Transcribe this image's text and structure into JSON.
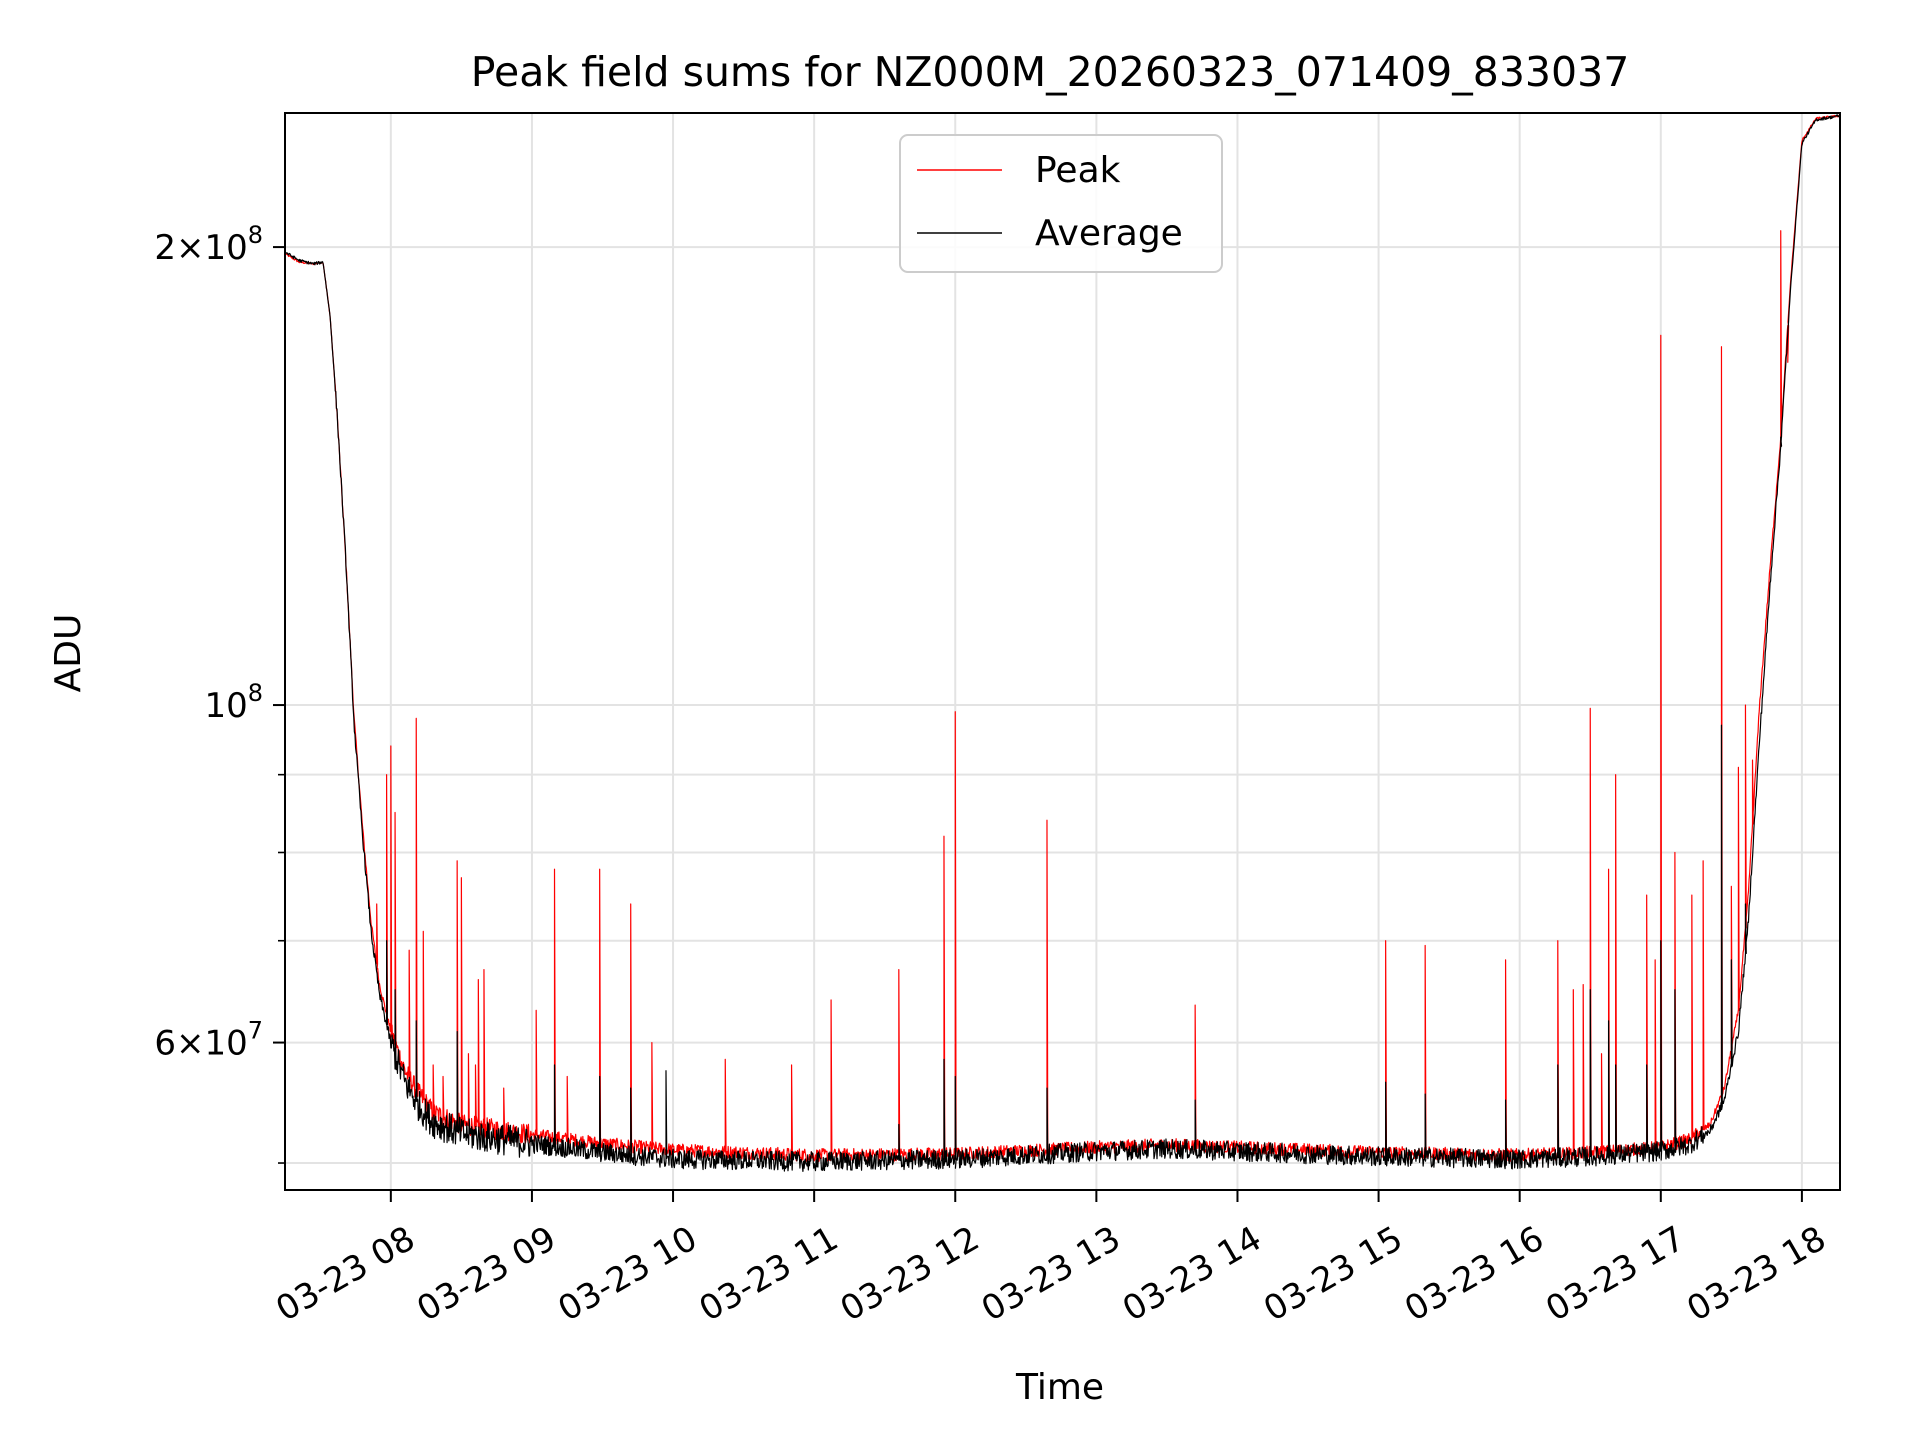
{
  "chart_data": {
    "type": "line",
    "title": "Peak field sums for NZ000M_20260323_071409_833037",
    "xlabel": "Time",
    "ylabel": "ADU",
    "y_scale": "log",
    "xlim": [
      7.25,
      18.27
    ],
    "ylim": [
      48000000,
      245000000
    ],
    "grid": true,
    "legend_position": "upper center",
    "x_tick_labels": [
      {
        "x": 8,
        "label": "03-23 08"
      },
      {
        "x": 9,
        "label": "03-23 09"
      },
      {
        "x": 10,
        "label": "03-23 10"
      },
      {
        "x": 11,
        "label": "03-23 11"
      },
      {
        "x": 12,
        "label": "03-23 12"
      },
      {
        "x": 13,
        "label": "03-23 13"
      },
      {
        "x": 14,
        "label": "03-23 14"
      },
      {
        "x": 15,
        "label": "03-23 15"
      },
      {
        "x": 16,
        "label": "03-23 16"
      },
      {
        "x": 17,
        "label": "03-23 17"
      },
      {
        "x": 18,
        "label": "03-23 18"
      }
    ],
    "y_major_ticks": [
      {
        "value": 60000000,
        "mantissa": "6",
        "exponent": "7"
      },
      {
        "value": 100000000,
        "mantissa": "",
        "exponent": "8"
      },
      {
        "value": 200000000,
        "mantissa": "2",
        "exponent": "8"
      }
    ],
    "y_minor_ticks": [
      50000000,
      70000000,
      80000000,
      90000000
    ],
    "series": [
      {
        "name": "Peak",
        "color": "#ff0000",
        "baseline_points": [
          [
            7.25,
            198000000
          ],
          [
            7.35,
            195500000
          ],
          [
            7.45,
            195000000
          ],
          [
            7.52,
            195500000
          ],
          [
            7.57,
            180000000
          ],
          [
            7.62,
            155000000
          ],
          [
            7.68,
            125000000
          ],
          [
            7.74,
            98000000
          ],
          [
            7.8,
            83000000
          ],
          [
            7.86,
            72000000
          ],
          [
            7.92,
            65500000
          ],
          [
            8.0,
            61000000
          ],
          [
            8.1,
            57500000
          ],
          [
            8.2,
            55500000
          ],
          [
            8.3,
            54000000
          ],
          [
            8.5,
            53000000
          ],
          [
            9.0,
            52200000
          ],
          [
            9.5,
            51500000
          ],
          [
            10.0,
            51000000
          ],
          [
            10.5,
            50800000
          ],
          [
            11.0,
            50600000
          ],
          [
            12.0,
            50700000
          ],
          [
            13.0,
            51200000
          ],
          [
            13.5,
            51400000
          ],
          [
            14.0,
            51200000
          ],
          [
            15.0,
            50800000
          ],
          [
            15.5,
            50700000
          ],
          [
            16.0,
            50600000
          ],
          [
            16.5,
            50800000
          ],
          [
            17.0,
            51200000
          ],
          [
            17.2,
            51800000
          ],
          [
            17.35,
            53000000
          ],
          [
            17.45,
            56000000
          ],
          [
            17.55,
            63000000
          ],
          [
            17.62,
            75000000
          ],
          [
            17.7,
            100000000
          ],
          [
            17.78,
            125000000
          ],
          [
            17.85,
            150000000
          ],
          [
            17.92,
            190000000
          ],
          [
            18.0,
            235000000
          ],
          [
            18.1,
            243000000
          ],
          [
            18.27,
            244000000
          ]
        ],
        "spikes": [
          [
            7.9,
            74000000
          ],
          [
            7.97,
            90000000
          ],
          [
            8.0,
            94000000
          ],
          [
            8.03,
            85000000
          ],
          [
            8.13,
            69000000
          ],
          [
            8.18,
            98000000
          ],
          [
            8.23,
            71000000
          ],
          [
            8.3,
            58000000
          ],
          [
            8.37,
            57000000
          ],
          [
            8.47,
            79000000
          ],
          [
            8.5,
            77000000
          ],
          [
            8.55,
            59000000
          ],
          [
            8.6,
            58000000
          ],
          [
            8.62,
            66000000
          ],
          [
            8.66,
            67000000
          ],
          [
            8.8,
            56000000
          ],
          [
            9.03,
            63000000
          ],
          [
            9.16,
            78000000
          ],
          [
            9.25,
            57000000
          ],
          [
            9.48,
            78000000
          ],
          [
            9.7,
            74000000
          ],
          [
            9.85,
            60000000
          ],
          [
            10.37,
            58500000
          ],
          [
            10.84,
            58000000
          ],
          [
            11.12,
            64000000
          ],
          [
            11.6,
            67000000
          ],
          [
            11.92,
            82000000
          ],
          [
            12.0,
            99000000
          ],
          [
            12.65,
            84000000
          ],
          [
            13.7,
            63500000
          ],
          [
            15.05,
            70000000
          ],
          [
            15.33,
            69500000
          ],
          [
            15.9,
            68000000
          ],
          [
            16.27,
            70000000
          ],
          [
            16.38,
            65000000
          ],
          [
            16.45,
            65500000
          ],
          [
            16.5,
            99500000
          ],
          [
            16.58,
            59000000
          ],
          [
            16.63,
            78000000
          ],
          [
            16.68,
            90000000
          ],
          [
            16.9,
            75000000
          ],
          [
            16.96,
            68000000
          ],
          [
            17.0,
            175000000
          ],
          [
            17.1,
            80000000
          ],
          [
            17.22,
            75000000
          ],
          [
            17.3,
            79000000
          ],
          [
            17.43,
            172000000
          ],
          [
            17.5,
            76000000
          ],
          [
            17.55,
            91000000
          ],
          [
            17.6,
            100000000
          ],
          [
            17.65,
            92000000
          ],
          [
            17.85,
            205000000
          ],
          [
            17.9,
            168000000
          ]
        ]
      },
      {
        "name": "Average",
        "color": "#000000",
        "baseline_points": [
          [
            7.25,
            198500000
          ],
          [
            7.35,
            196000000
          ],
          [
            7.45,
            195000000
          ],
          [
            7.52,
            195500000
          ],
          [
            7.57,
            180000000
          ],
          [
            7.62,
            155000000
          ],
          [
            7.68,
            125000000
          ],
          [
            7.74,
            97000000
          ],
          [
            7.8,
            82000000
          ],
          [
            7.86,
            71000000
          ],
          [
            7.92,
            64500000
          ],
          [
            8.0,
            60000000
          ],
          [
            8.1,
            56500000
          ],
          [
            8.2,
            54500000
          ],
          [
            8.3,
            53200000
          ],
          [
            8.5,
            52300000
          ],
          [
            9.0,
            51500000
          ],
          [
            9.5,
            50800000
          ],
          [
            10.0,
            50300000
          ],
          [
            10.5,
            50200000
          ],
          [
            11.0,
            50100000
          ],
          [
            12.0,
            50300000
          ],
          [
            13.0,
            50900000
          ],
          [
            13.5,
            51100000
          ],
          [
            14.0,
            50900000
          ],
          [
            15.0,
            50500000
          ],
          [
            15.5,
            50400000
          ],
          [
            16.0,
            50300000
          ],
          [
            16.5,
            50500000
          ],
          [
            17.0,
            50900000
          ],
          [
            17.2,
            51400000
          ],
          [
            17.35,
            52500000
          ],
          [
            17.45,
            55000000
          ],
          [
            17.55,
            61000000
          ],
          [
            17.62,
            72000000
          ],
          [
            17.7,
            95000000
          ],
          [
            17.78,
            122000000
          ],
          [
            17.85,
            148000000
          ],
          [
            17.92,
            188000000
          ],
          [
            18.0,
            234000000
          ],
          [
            18.1,
            242500000
          ],
          [
            18.27,
            244000000
          ]
        ],
        "spikes": [
          [
            7.97,
            70000000
          ],
          [
            8.03,
            65000000
          ],
          [
            8.18,
            62000000
          ],
          [
            8.47,
            61000000
          ],
          [
            9.16,
            58000000
          ],
          [
            9.48,
            57000000
          ],
          [
            9.7,
            56000000
          ],
          [
            9.95,
            57500000
          ],
          [
            11.6,
            53000000
          ],
          [
            11.92,
            58500000
          ],
          [
            12.0,
            57000000
          ],
          [
            12.65,
            56000000
          ],
          [
            13.7,
            55000000
          ],
          [
            15.05,
            56500000
          ],
          [
            15.33,
            55500000
          ],
          [
            15.9,
            55000000
          ],
          [
            16.27,
            58000000
          ],
          [
            16.5,
            65000000
          ],
          [
            16.63,
            62000000
          ],
          [
            16.68,
            58000000
          ],
          [
            16.9,
            58000000
          ],
          [
            17.0,
            70000000
          ],
          [
            17.1,
            65000000
          ],
          [
            17.43,
            97000000
          ],
          [
            17.5,
            68000000
          ],
          [
            17.6,
            74000000
          ],
          [
            17.85,
            150000000
          ]
        ]
      }
    ]
  }
}
